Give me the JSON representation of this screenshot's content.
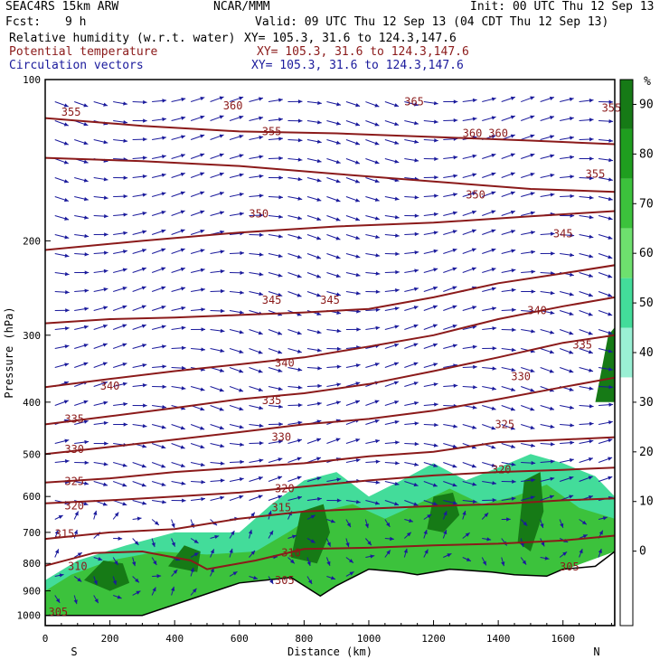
{
  "header": {
    "model": "SEAC4RS 15km ARW",
    "org": "NCAR/MMM",
    "init": "Init: 00 UTC Thu 12 Sep 13",
    "fcst_label": "Fcst:",
    "fcst_value": "9 h",
    "valid": "Valid: 09 UTC Thu 12 Sep 13 (04 CDT Thu 12 Sep 13)",
    "fields": [
      {
        "name": "Relative humidity (w.r.t. water)",
        "xy": "XY= 105.3, 31.6 to 124.3,147.6",
        "color": "#000000"
      },
      {
        "name": "Potential temperature",
        "xy": "XY= 105.3, 31.6 to 124.3,147.6",
        "color": "#8b1a1a"
      },
      {
        "name": "Circulation vectors",
        "xy": "XY= 105.3, 31.6 to 124.3,147.6",
        "color": "#1a1a9c"
      }
    ]
  },
  "chart_data": {
    "type": "heatmap",
    "title": "Relative humidity (w.r.t. water) / Potential temperature / Circulation vectors cross section",
    "xlabel": "Distance (km)",
    "ylabel": "Pressure (hPa)",
    "xlim": [
      0,
      1760
    ],
    "ylim_hpa": [
      1000,
      100
    ],
    "y_scale": "log",
    "x_ticks": [
      "0",
      "200",
      "400",
      "600",
      "800",
      "1000",
      "1200",
      "1400",
      "1600"
    ],
    "y_ticks": [
      "100",
      "200",
      "300",
      "400",
      "500",
      "600",
      "700",
      "800",
      "900",
      "1000"
    ],
    "x_end_labels": {
      "left": "S",
      "right": "N"
    },
    "colorbar": {
      "unit": "%",
      "labels": [
        "90",
        "80",
        "70",
        "60",
        "50",
        "40",
        "30",
        "20",
        "10",
        "0"
      ],
      "levels": [
        {
          "min": 90,
          "color": "#167a16"
        },
        {
          "min": 80,
          "color": "#1f9e1f"
        },
        {
          "min": 70,
          "color": "#3cc23c"
        },
        {
          "min": 60,
          "color": "#6ee06e"
        },
        {
          "min": 50,
          "color": "#43dc9a"
        },
        {
          "min": 40,
          "color": "#9af0d4"
        },
        {
          "min": 30,
          "color": "#ffffff"
        }
      ]
    },
    "theta_contours": [
      {
        "label": "310",
        "points": [
          [
            0,
            808
          ],
          [
            150,
            765
          ],
          [
            300,
            760
          ],
          [
            450,
            790
          ],
          [
            500,
            820
          ],
          [
            650,
            790
          ],
          [
            800,
            752
          ],
          [
            1000,
            748
          ],
          [
            1200,
            740
          ],
          [
            1400,
            735
          ],
          [
            1600,
            725
          ],
          [
            1760,
            710
          ]
        ]
      },
      {
        "label": "315",
        "points": [
          [
            0,
            720
          ],
          [
            200,
            700
          ],
          [
            400,
            690
          ],
          [
            600,
            660
          ],
          [
            800,
            640
          ],
          [
            1000,
            632
          ],
          [
            1200,
            625
          ],
          [
            1400,
            620
          ],
          [
            1600,
            610
          ],
          [
            1760,
            605
          ]
        ]
      },
      {
        "label": "320",
        "points": [
          [
            0,
            618
          ],
          [
            200,
            610
          ],
          [
            400,
            600
          ],
          [
            600,
            590
          ],
          [
            800,
            575
          ],
          [
            1000,
            560
          ],
          [
            1200,
            548
          ],
          [
            1400,
            540
          ],
          [
            1600,
            535
          ],
          [
            1760,
            530
          ]
        ]
      },
      {
        "label": "325",
        "points": [
          [
            0,
            565
          ],
          [
            200,
            555
          ],
          [
            400,
            540
          ],
          [
            600,
            530
          ],
          [
            800,
            520
          ],
          [
            1000,
            505
          ],
          [
            1200,
            495
          ],
          [
            1400,
            475
          ],
          [
            1600,
            470
          ],
          [
            1760,
            465
          ]
        ]
      },
      {
        "label": "330",
        "points": [
          [
            0,
            500
          ],
          [
            200,
            485
          ],
          [
            400,
            470
          ],
          [
            600,
            455
          ],
          [
            800,
            440
          ],
          [
            1000,
            430
          ],
          [
            1200,
            415
          ],
          [
            1400,
            395
          ],
          [
            1600,
            375
          ],
          [
            1760,
            360
          ]
        ]
      },
      {
        "label": "335",
        "points": [
          [
            0,
            440
          ],
          [
            200,
            425
          ],
          [
            400,
            410
          ],
          [
            600,
            395
          ],
          [
            800,
            385
          ],
          [
            1000,
            370
          ],
          [
            1200,
            350
          ],
          [
            1400,
            330
          ],
          [
            1600,
            310
          ],
          [
            1760,
            300
          ]
        ]
      },
      {
        "label": "340",
        "points": [
          [
            0,
            375
          ],
          [
            200,
            362
          ],
          [
            400,
            350
          ],
          [
            600,
            340
          ],
          [
            800,
            330
          ],
          [
            1000,
            315
          ],
          [
            1200,
            300
          ],
          [
            1400,
            280
          ],
          [
            1600,
            265
          ],
          [
            1760,
            255
          ]
        ]
      },
      {
        "label": "345",
        "points": [
          [
            0,
            285
          ],
          [
            200,
            280
          ],
          [
            400,
            278
          ],
          [
            600,
            275
          ],
          [
            800,
            272
          ],
          [
            1000,
            268
          ],
          [
            1200,
            255
          ],
          [
            1400,
            240
          ],
          [
            1600,
            230
          ],
          [
            1760,
            222
          ]
        ]
      },
      {
        "label": "350",
        "points": [
          [
            0,
            208
          ],
          [
            300,
            200
          ],
          [
            600,
            193
          ],
          [
            900,
            188
          ],
          [
            1200,
            185
          ],
          [
            1500,
            180
          ],
          [
            1760,
            176
          ]
        ]
      },
      {
        "label": "355",
        "points": [
          [
            0,
            140
          ],
          [
            300,
            142
          ],
          [
            600,
            145
          ],
          [
            900,
            150
          ],
          [
            1200,
            155
          ],
          [
            1500,
            160
          ],
          [
            1760,
            162
          ]
        ]
      },
      {
        "label": "360",
        "points": [
          [
            0,
            118
          ],
          [
            300,
            122
          ],
          [
            600,
            125
          ],
          [
            900,
            126
          ],
          [
            1200,
            128
          ],
          [
            1500,
            130
          ],
          [
            1760,
            132
          ]
        ]
      }
    ],
    "contour_labels": [
      {
        "text": "355",
        "x": 80,
        "p": 115
      },
      {
        "text": "360",
        "x": 580,
        "p": 112
      },
      {
        "text": "355",
        "x": 700,
        "p": 125
      },
      {
        "text": "365",
        "x": 1140,
        "p": 110
      },
      {
        "text": "360",
        "x": 1320,
        "p": 126
      },
      {
        "text": "360",
        "x": 1400,
        "p": 126
      },
      {
        "text": "355",
        "x": 1750,
        "p": 113
      },
      {
        "text": "355",
        "x": 1700,
        "p": 150
      },
      {
        "text": "350",
        "x": 660,
        "p": 178
      },
      {
        "text": "350",
        "x": 1330,
        "p": 164
      },
      {
        "text": "345",
        "x": 1600,
        "p": 194
      },
      {
        "text": "345",
        "x": 700,
        "p": 258
      },
      {
        "text": "345",
        "x": 880,
        "p": 258
      },
      {
        "text": "340",
        "x": 1520,
        "p": 270
      },
      {
        "text": "335",
        "x": 1660,
        "p": 313
      },
      {
        "text": "340",
        "x": 740,
        "p": 338
      },
      {
        "text": "330",
        "x": 1470,
        "p": 358
      },
      {
        "text": "340",
        "x": 200,
        "p": 373
      },
      {
        "text": "335",
        "x": 700,
        "p": 397
      },
      {
        "text": "335",
        "x": 90,
        "p": 430
      },
      {
        "text": "325",
        "x": 1420,
        "p": 440
      },
      {
        "text": "330",
        "x": 730,
        "p": 465
      },
      {
        "text": "330",
        "x": 90,
        "p": 490
      },
      {
        "text": "320",
        "x": 1410,
        "p": 535
      },
      {
        "text": "325",
        "x": 90,
        "p": 562
      },
      {
        "text": "320",
        "x": 740,
        "p": 580
      },
      {
        "text": "320",
        "x": 90,
        "p": 625
      },
      {
        "text": "315",
        "x": 730,
        "p": 630
      },
      {
        "text": "315",
        "x": 60,
        "p": 705
      },
      {
        "text": "310",
        "x": 760,
        "p": 765
      },
      {
        "text": "310",
        "x": 100,
        "p": 810
      },
      {
        "text": "305",
        "x": 740,
        "p": 860
      },
      {
        "text": "305",
        "x": 1620,
        "p": 812
      },
      {
        "text": "305",
        "x": 40,
        "p": 985
      }
    ],
    "terrain": [
      [
        0,
        1000
      ],
      [
        300,
        1000
      ],
      [
        600,
        870
      ],
      [
        760,
        850
      ],
      [
        850,
        920
      ],
      [
        900,
        880
      ],
      [
        1000,
        820
      ],
      [
        1100,
        830
      ],
      [
        1150,
        840
      ],
      [
        1250,
        820
      ],
      [
        1380,
        830
      ],
      [
        1450,
        840
      ],
      [
        1550,
        845
      ],
      [
        1600,
        820
      ],
      [
        1700,
        810
      ],
      [
        1760,
        760
      ]
    ],
    "moist_regions": [
      {
        "rh": 50,
        "points": [
          [
            0,
            1000
          ],
          [
            300,
            1000
          ],
          [
            600,
            870
          ],
          [
            760,
            850
          ],
          [
            850,
            920
          ],
          [
            900,
            880
          ],
          [
            1000,
            820
          ],
          [
            1150,
            840
          ],
          [
            1250,
            820
          ],
          [
            1450,
            840
          ],
          [
            1550,
            845
          ],
          [
            1760,
            760
          ],
          [
            1760,
            600
          ],
          [
            1700,
            550
          ],
          [
            1600,
            520
          ],
          [
            1500,
            500
          ],
          [
            1400,
            530
          ],
          [
            1300,
            560
          ],
          [
            1200,
            520
          ],
          [
            1100,
            560
          ],
          [
            1000,
            600
          ],
          [
            900,
            540
          ],
          [
            800,
            560
          ],
          [
            700,
            620
          ],
          [
            600,
            700
          ],
          [
            400,
            700
          ],
          [
            250,
            740
          ],
          [
            100,
            790
          ],
          [
            0,
            860
          ]
        ]
      },
      {
        "rh": 70,
        "points": [
          [
            0,
            1000
          ],
          [
            300,
            1000
          ],
          [
            600,
            870
          ],
          [
            760,
            850
          ],
          [
            850,
            920
          ],
          [
            900,
            880
          ],
          [
            1000,
            820
          ],
          [
            1150,
            840
          ],
          [
            1250,
            820
          ],
          [
            1450,
            840
          ],
          [
            1550,
            845
          ],
          [
            1760,
            760
          ],
          [
            1760,
            660
          ],
          [
            1650,
            630
          ],
          [
            1550,
            570
          ],
          [
            1450,
            600
          ],
          [
            1350,
            620
          ],
          [
            1250,
            580
          ],
          [
            1150,
            620
          ],
          [
            1050,
            660
          ],
          [
            950,
            620
          ],
          [
            850,
            640
          ],
          [
            750,
            700
          ],
          [
            650,
            760
          ],
          [
            500,
            770
          ],
          [
            350,
            760
          ],
          [
            200,
            790
          ],
          [
            80,
            840
          ],
          [
            0,
            900
          ]
        ]
      },
      {
        "rh": 90,
        "points": [
          [
            120,
            860
          ],
          [
            180,
            790
          ],
          [
            240,
            800
          ],
          [
            260,
            870
          ],
          [
            200,
            900
          ]
        ]
      },
      {
        "rh": 90,
        "points": [
          [
            380,
            810
          ],
          [
            430,
            740
          ],
          [
            480,
            760
          ],
          [
            470,
            830
          ]
        ]
      },
      {
        "rh": 90,
        "points": [
          [
            760,
            780
          ],
          [
            790,
            640
          ],
          [
            860,
            620
          ],
          [
            880,
            700
          ],
          [
            840,
            800
          ]
        ]
      },
      {
        "rh": 90,
        "points": [
          [
            1180,
            690
          ],
          [
            1200,
            600
          ],
          [
            1260,
            590
          ],
          [
            1280,
            650
          ],
          [
            1230,
            700
          ]
        ]
      },
      {
        "rh": 90,
        "points": [
          [
            1460,
            730
          ],
          [
            1480,
            560
          ],
          [
            1530,
            540
          ],
          [
            1540,
            640
          ],
          [
            1500,
            760
          ]
        ]
      },
      {
        "rh": 90,
        "points": [
          [
            1700,
            400
          ],
          [
            1740,
            300
          ],
          [
            1760,
            290
          ],
          [
            1760,
            400
          ]
        ]
      }
    ],
    "grid": false,
    "legend_placement": "right colorbar"
  }
}
